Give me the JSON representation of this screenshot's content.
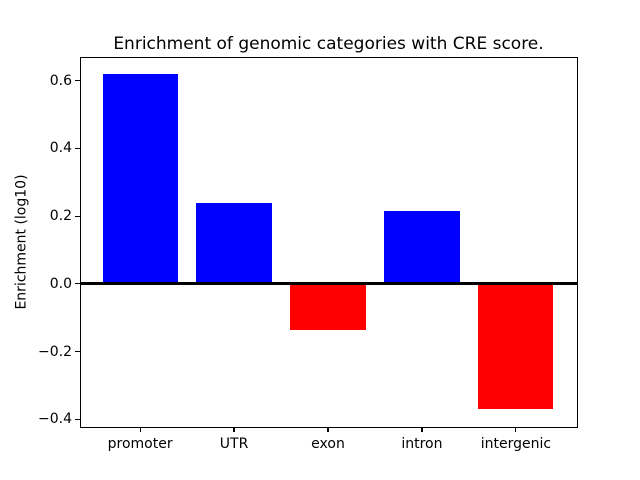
{
  "figure": {
    "background": "#ffffff",
    "axis_color": "#000000",
    "text_color": "#000000"
  },
  "chart_data": {
    "type": "bar",
    "title": "Enrichment of genomic categories with CRE score.",
    "xlabel": "",
    "ylabel": "Enrichment (log10)",
    "categories": [
      "promoter",
      "UTR",
      "exon",
      "intron",
      "intergenic"
    ],
    "values": [
      0.62,
      0.24,
      -0.135,
      0.215,
      -0.37
    ],
    "bar_colors": [
      "#0000ff",
      "#0000ff",
      "#ff0000",
      "#0000ff",
      "#ff0000"
    ],
    "positive_color": "#0000ff",
    "negative_color": "#ff0000",
    "yticks": [
      0.6,
      0.4,
      0.2,
      0.0,
      -0.2,
      -0.4
    ],
    "ytick_labels": [
      "0.6",
      "0.4",
      "0.2",
      "0.0",
      "−0.2",
      "−0.4"
    ],
    "ylim": [
      -0.42,
      0.67
    ],
    "xlim": [
      -0.64,
      4.64
    ],
    "bar_width": 0.8,
    "grid": false,
    "legend": null,
    "zero_line": true
  }
}
